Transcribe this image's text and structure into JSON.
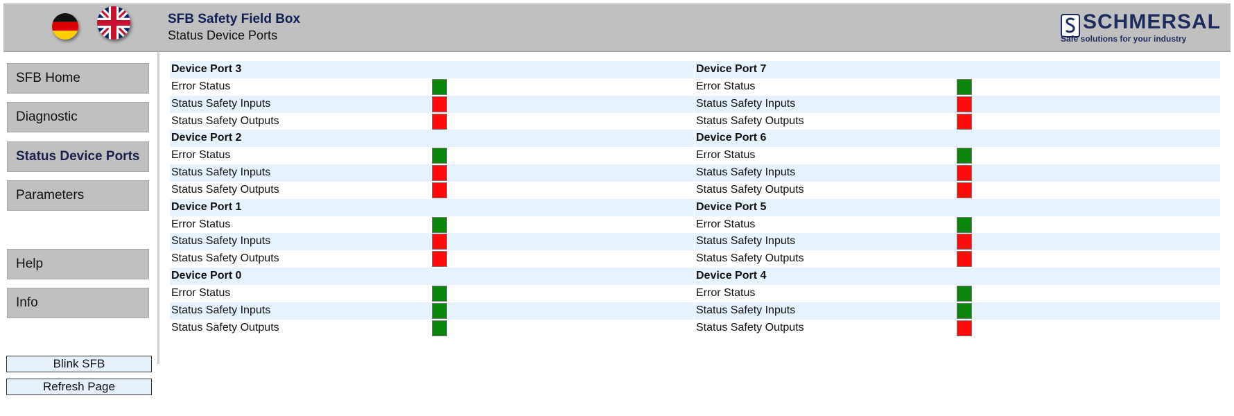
{
  "header": {
    "title": "SFB Safety Field Box",
    "subtitle": "Status Device Ports",
    "brand": "SCHMERSAL",
    "tagline": "Safe solutions for your industry",
    "lang_flags": [
      "german-flag-icon",
      "uk-flag-icon"
    ]
  },
  "nav": {
    "items": [
      {
        "label": "SFB Home"
      },
      {
        "label": "Diagnostic"
      },
      {
        "label": "Status Device Ports",
        "active": true
      },
      {
        "label": "Parameters"
      },
      {
        "label": "Help"
      },
      {
        "label": "Info"
      }
    ],
    "actions": [
      {
        "label": "Blink SFB"
      },
      {
        "label": "Refresh Page"
      }
    ]
  },
  "status_colors": {
    "ok": "#0c850c",
    "fault": "#ff0b0b"
  },
  "ports": {
    "left": [
      {
        "name": "Device Port 3",
        "signals": [
          {
            "label": "Error Status",
            "state": "green"
          },
          {
            "label": "Status Safety Inputs",
            "state": "red"
          },
          {
            "label": "Status Safety Outputs",
            "state": "red"
          }
        ]
      },
      {
        "name": "Device Port 2",
        "signals": [
          {
            "label": "Error Status",
            "state": "green"
          },
          {
            "label": "Status Safety Inputs",
            "state": "red"
          },
          {
            "label": "Status Safety Outputs",
            "state": "red"
          }
        ]
      },
      {
        "name": "Device Port 1",
        "signals": [
          {
            "label": "Error Status",
            "state": "green"
          },
          {
            "label": "Status Safety Inputs",
            "state": "red"
          },
          {
            "label": "Status Safety Outputs",
            "state": "red"
          }
        ]
      },
      {
        "name": "Device Port 0",
        "signals": [
          {
            "label": "Error Status",
            "state": "green"
          },
          {
            "label": "Status Safety Inputs",
            "state": "green"
          },
          {
            "label": "Status Safety Outputs",
            "state": "green"
          }
        ]
      }
    ],
    "right": [
      {
        "name": "Device Port 7",
        "signals": [
          {
            "label": "Error Status",
            "state": "green"
          },
          {
            "label": "Status Safety Inputs",
            "state": "red"
          },
          {
            "label": "Status Safety Outputs",
            "state": "red"
          }
        ]
      },
      {
        "name": "Device Port 6",
        "signals": [
          {
            "label": "Error Status",
            "state": "green"
          },
          {
            "label": "Status Safety Inputs",
            "state": "red"
          },
          {
            "label": "Status Safety Outputs",
            "state": "red"
          }
        ]
      },
      {
        "name": "Device Port 5",
        "signals": [
          {
            "label": "Error Status",
            "state": "green"
          },
          {
            "label": "Status Safety Inputs",
            "state": "red"
          },
          {
            "label": "Status Safety Outputs",
            "state": "red"
          }
        ]
      },
      {
        "name": "Device Port 4",
        "signals": [
          {
            "label": "Error Status",
            "state": "green"
          },
          {
            "label": "Status Safety Inputs",
            "state": "green"
          },
          {
            "label": "Status Safety Outputs",
            "state": "red"
          }
        ]
      }
    ]
  }
}
